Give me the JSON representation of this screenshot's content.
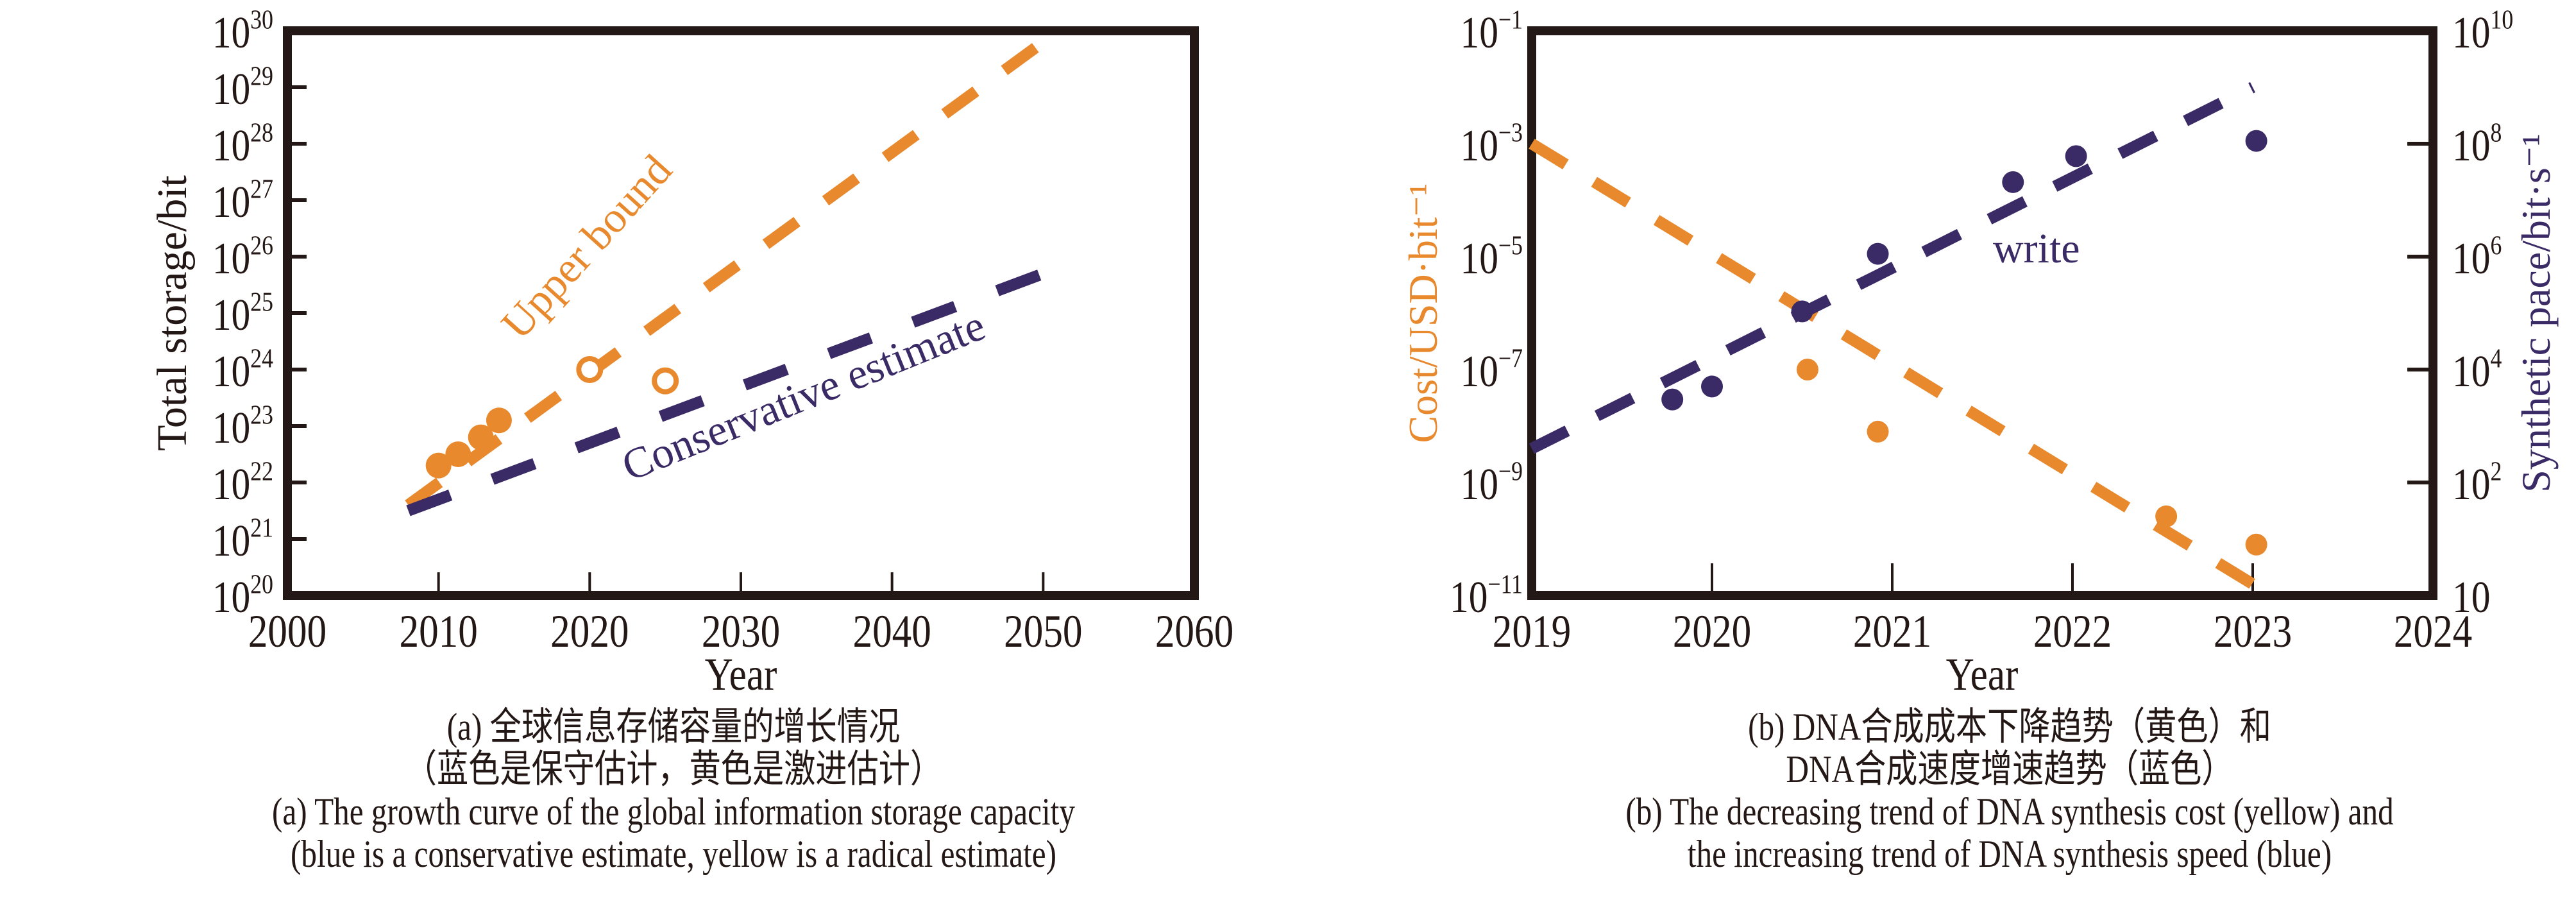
{
  "colors": {
    "orange": "#E8892E",
    "navy": "#3A2A66",
    "axis": "#231815"
  },
  "chart_data": [
    {
      "id": "a",
      "type": "line",
      "xlabel": "Year",
      "ylabel": "Total storage/bit",
      "xlim": [
        2000,
        2060
      ],
      "ylim_log10": [
        20,
        30
      ],
      "yscale": "log",
      "x_ticks": [
        "2000",
        "2010",
        "2020",
        "2030",
        "2040",
        "2050",
        "2060"
      ],
      "x_tick_values": [
        2000,
        2010,
        2020,
        2030,
        2040,
        2050,
        2060
      ],
      "y_ticks": [
        {
          "base": "10",
          "exp": "30",
          "log": 30
        },
        {
          "base": "10",
          "exp": "29",
          "log": 29
        },
        {
          "base": "10",
          "exp": "28",
          "log": 28
        },
        {
          "base": "10",
          "exp": "27",
          "log": 27
        },
        {
          "base": "10",
          "exp": "26",
          "log": 26
        },
        {
          "base": "10",
          "exp": "25",
          "log": 25
        },
        {
          "base": "10",
          "exp": "24",
          "log": 24
        },
        {
          "base": "10",
          "exp": "23",
          "log": 23
        },
        {
          "base": "10",
          "exp": "22",
          "log": 22
        },
        {
          "base": "10",
          "exp": "21",
          "log": 21
        },
        {
          "base": "10",
          "exp": "20",
          "log": 20
        }
      ],
      "series": [
        {
          "name": "Upper bound",
          "color": "orange",
          "style": "dashed",
          "x": [
            2008,
            2050
          ],
          "y_log10": [
            21.6,
            29.8
          ]
        },
        {
          "name": "Conservative estimate",
          "color": "navy",
          "style": "dashed",
          "x": [
            2008,
            2050
          ],
          "y_log10": [
            21.5,
            25.7
          ]
        }
      ],
      "points": [
        {
          "series": "Upper bound",
          "filled": true,
          "x": 2010,
          "y_log10": 22.3
        },
        {
          "series": "Upper bound",
          "filled": true,
          "x": 2011.3,
          "y_log10": 22.5
        },
        {
          "series": "Upper bound",
          "filled": true,
          "x": 2012.8,
          "y_log10": 22.8
        },
        {
          "series": "Upper bound",
          "filled": true,
          "x": 2014,
          "y_log10": 23.1
        },
        {
          "series": "Upper bound",
          "filled": false,
          "x": 2020,
          "y_log10": 24.0
        },
        {
          "series": "Upper bound",
          "filled": false,
          "x": 2025,
          "y_log10": 23.8
        }
      ],
      "annotations": [
        {
          "text": "Upper bound",
          "color": "orange",
          "x": 2020.5,
          "y_log10": 26,
          "angle": -48
        },
        {
          "text": "Conservative estimate",
          "color": "navy",
          "x": 2034.5,
          "y_log10": 23.3,
          "angle": -22
        }
      ]
    },
    {
      "id": "b",
      "type": "line",
      "xlabel": "Year",
      "ylabel_left": "Cost/USD·bit⁻¹",
      "ylabel_right": "Synthetic pace/bit·s⁻¹",
      "xlim": [
        2019,
        2024
      ],
      "ylim_left_log10": [
        -11,
        -1
      ],
      "yscale": "log",
      "x_ticks": [
        "2019",
        "2020",
        "2021",
        "2022",
        "2023",
        "2024"
      ],
      "x_tick_values": [
        2019,
        2020,
        2021,
        2022,
        2023,
        2024
      ],
      "y_ticks_left": [
        {
          "base": "10",
          "exp": "−1",
          "log": -1
        },
        {
          "base": "10",
          "exp": "−3",
          "log": -3
        },
        {
          "base": "10",
          "exp": "−5",
          "log": -5
        },
        {
          "base": "10",
          "exp": "−7",
          "log": -7
        },
        {
          "base": "10",
          "exp": "−9",
          "log": -9
        },
        {
          "base": "10",
          "exp": "−11",
          "log": -11
        }
      ],
      "y_ticks_right": [
        {
          "base": "10",
          "exp": "10",
          "frac": 0.0
        },
        {
          "base": "10",
          "exp": "8",
          "frac": 0.2
        },
        {
          "base": "10",
          "exp": "6",
          "frac": 0.4
        },
        {
          "base": "10",
          "exp": "4",
          "frac": 0.6
        },
        {
          "base": "10",
          "exp": "2",
          "frac": 0.8
        },
        {
          "base": "10",
          "exp": "",
          "frac": 1.0
        }
      ],
      "series": [
        {
          "name": "Cost (yellow)",
          "color": "orange",
          "style": "dashed",
          "axis": "left",
          "x": [
            2019,
            2023
          ],
          "y_log10": [
            -3.0,
            -10.8
          ]
        },
        {
          "name": "write (blue)",
          "color": "navy",
          "style": "dashed",
          "axis": "right",
          "x": [
            2019,
            2023
          ],
          "y_frac_from_top": [
            0.74,
            0.1
          ]
        }
      ],
      "points": [
        {
          "series": "Cost (yellow)",
          "x": 2020.53,
          "y_log10": -7.0
        },
        {
          "series": "Cost (yellow)",
          "x": 2020.92,
          "y_log10": -8.1
        },
        {
          "series": "Cost (yellow)",
          "x": 2022.52,
          "y_log10": -9.6
        },
        {
          "series": "Cost (yellow)",
          "x": 2023.02,
          "y_log10": -10.1
        },
        {
          "series": "write (blue)",
          "x": 2019.78,
          "y_frac_from_top": 0.653
        },
        {
          "series": "write (blue)",
          "x": 2020.0,
          "y_frac_from_top": 0.63
        },
        {
          "series": "write (blue)",
          "x": 2020.5,
          "y_frac_from_top": 0.497
        },
        {
          "series": "write (blue)",
          "x": 2020.92,
          "y_frac_from_top": 0.395
        },
        {
          "series": "write (blue)",
          "x": 2021.67,
          "y_frac_from_top": 0.268
        },
        {
          "series": "write (blue)",
          "x": 2022.02,
          "y_frac_from_top": 0.222
        },
        {
          "series": "write (blue)",
          "x": 2023.02,
          "y_frac_from_top": 0.195
        }
      ],
      "annotations": [
        {
          "text": "write",
          "color": "navy",
          "x": 2021.8,
          "y_log10": -5.1
        }
      ]
    }
  ],
  "captions": {
    "a": {
      "zh_line1": "(a) 全球信息存储容量的增长情况",
      "zh_line2": "（蓝色是保守估计，黄色是激进估计）",
      "en_line1": "(a) The growth curve of the global information storage capacity",
      "en_line2": "(blue is a conservative estimate, yellow is a radical estimate)"
    },
    "b": {
      "zh_line1": "(b) DNA合成成本下降趋势（黄色）和",
      "zh_line2": "DNA合成速度增速趋势（蓝色）",
      "en_line1": "(b) The decreasing trend of DNA synthesis cost (yellow) and",
      "en_line2": "the increasing trend of DNA synthesis speed (blue)"
    }
  }
}
